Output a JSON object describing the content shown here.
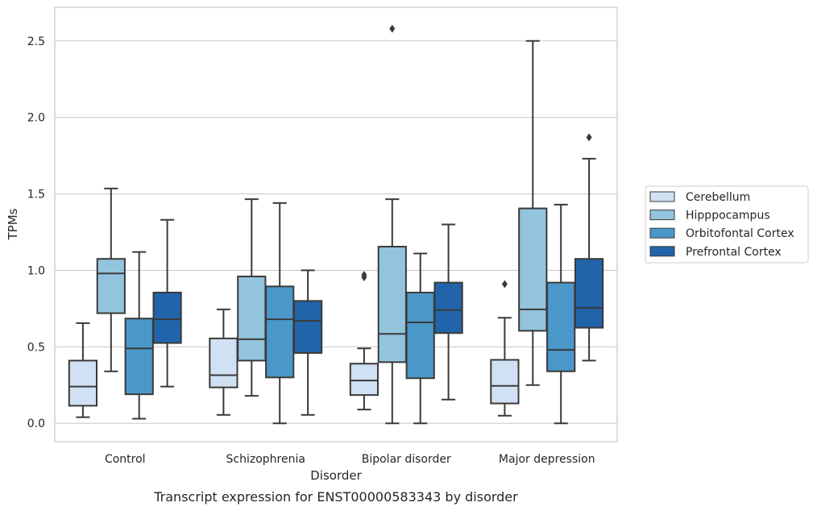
{
  "chart_data": {
    "type": "box",
    "caption": "Transcript expression for ENST00000583343 by disorder",
    "xlabel": "Disorder",
    "ylabel": "TPMs",
    "ylim": [
      -0.12,
      2.72
    ],
    "yticks": [
      0.0,
      0.5,
      1.0,
      1.5,
      2.0,
      2.5
    ],
    "ytick_labels": [
      "0.0",
      "0.5",
      "1.0",
      "1.5",
      "2.0",
      "2.5"
    ],
    "grid": "horizontal",
    "legend_position": "right",
    "categories": [
      "Control",
      "Schizophrenia",
      "Bipolar disorder",
      "Major depression"
    ],
    "series": [
      {
        "name": "Cerebellum",
        "color": "#cfe1f2",
        "boxes": [
          {
            "whislo": 0.04,
            "q1": 0.115,
            "med": 0.24,
            "q3": 0.41,
            "whishi": 0.655,
            "fliers": []
          },
          {
            "whislo": 0.055,
            "q1": 0.235,
            "med": 0.315,
            "q3": 0.555,
            "whishi": 0.745,
            "fliers": []
          },
          {
            "whislo": 0.09,
            "q1": 0.185,
            "med": 0.28,
            "q3": 0.39,
            "whishi": 0.49,
            "fliers": [
              0.955,
              0.97
            ]
          },
          {
            "whislo": 0.05,
            "q1": 0.13,
            "med": 0.245,
            "q3": 0.415,
            "whishi": 0.69,
            "fliers": [
              0.91
            ]
          }
        ]
      },
      {
        "name": "Hipppocampus",
        "color": "#93c4de",
        "boxes": [
          {
            "whislo": 0.34,
            "q1": 0.72,
            "med": 0.98,
            "q3": 1.075,
            "whishi": 1.535,
            "fliers": []
          },
          {
            "whislo": 0.18,
            "q1": 0.41,
            "med": 0.55,
            "q3": 0.96,
            "whishi": 1.465,
            "fliers": []
          },
          {
            "whislo": 0.0,
            "q1": 0.4,
            "med": 0.585,
            "q3": 1.155,
            "whishi": 1.465,
            "fliers": [
              2.58
            ]
          },
          {
            "whislo": 0.25,
            "q1": 0.605,
            "med": 0.745,
            "q3": 1.405,
            "whishi": 2.5,
            "fliers": []
          }
        ]
      },
      {
        "name": "Orbitofontal Cortex",
        "color": "#4a98c9",
        "boxes": [
          {
            "whislo": 0.03,
            "q1": 0.19,
            "med": 0.49,
            "q3": 0.685,
            "whishi": 1.12,
            "fliers": []
          },
          {
            "whislo": 0.0,
            "q1": 0.3,
            "med": 0.68,
            "q3": 0.895,
            "whishi": 1.44,
            "fliers": []
          },
          {
            "whislo": 0.0,
            "q1": 0.295,
            "med": 0.66,
            "q3": 0.855,
            "whishi": 1.11,
            "fliers": []
          },
          {
            "whislo": 0.0,
            "q1": 0.34,
            "med": 0.48,
            "q3": 0.92,
            "whishi": 1.43,
            "fliers": []
          }
        ]
      },
      {
        "name": "Prefrontal Cortex",
        "color": "#2264a9",
        "boxes": [
          {
            "whislo": 0.24,
            "q1": 0.525,
            "med": 0.68,
            "q3": 0.855,
            "whishi": 1.33,
            "fliers": []
          },
          {
            "whislo": 0.055,
            "q1": 0.46,
            "med": 0.67,
            "q3": 0.8,
            "whishi": 1.0,
            "fliers": []
          },
          {
            "whislo": 0.155,
            "q1": 0.59,
            "med": 0.74,
            "q3": 0.92,
            "whishi": 1.3,
            "fliers": []
          },
          {
            "whislo": 0.41,
            "q1": 0.625,
            "med": 0.755,
            "q3": 1.075,
            "whishi": 1.73,
            "fliers": [
              1.87
            ]
          }
        ]
      }
    ]
  }
}
